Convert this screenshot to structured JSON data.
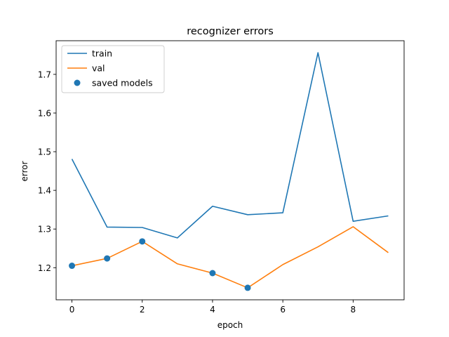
{
  "chart_data": {
    "type": "line",
    "title": "recognizer errors",
    "xlabel": "epoch",
    "ylabel": "error",
    "xlim": [
      -0.45,
      9.45
    ],
    "ylim": [
      1.117,
      1.787
    ],
    "xticks": [
      0,
      2,
      4,
      6,
      8
    ],
    "xtick_labels": [
      "0",
      "2",
      "4",
      "6",
      "8"
    ],
    "yticks": [
      1.2,
      1.3,
      1.4,
      1.5,
      1.6,
      1.7
    ],
    "ytick_labels": [
      "1.2",
      "1.3",
      "1.4",
      "1.5",
      "1.6",
      "1.7"
    ],
    "grid": false,
    "legend_position": "top-left",
    "x": [
      0,
      1,
      2,
      3,
      4,
      5,
      6,
      7,
      8,
      9
    ],
    "series": [
      {
        "name": "train",
        "kind": "line",
        "color": "#1f77b4",
        "values": [
          1.481,
          1.305,
          1.304,
          1.277,
          1.359,
          1.337,
          1.342,
          1.756,
          1.32,
          1.334
        ]
      },
      {
        "name": "val",
        "kind": "line",
        "color": "#ff7f0e",
        "values": [
          1.205,
          1.224,
          1.268,
          1.21,
          1.186,
          1.148,
          1.208,
          1.254,
          1.306,
          1.239
        ]
      },
      {
        "name": "saved models",
        "kind": "scatter",
        "color": "#1f77b4",
        "x": [
          0,
          1,
          2,
          4,
          5
        ],
        "values": [
          1.205,
          1.224,
          1.268,
          1.186,
          1.148
        ]
      }
    ]
  }
}
